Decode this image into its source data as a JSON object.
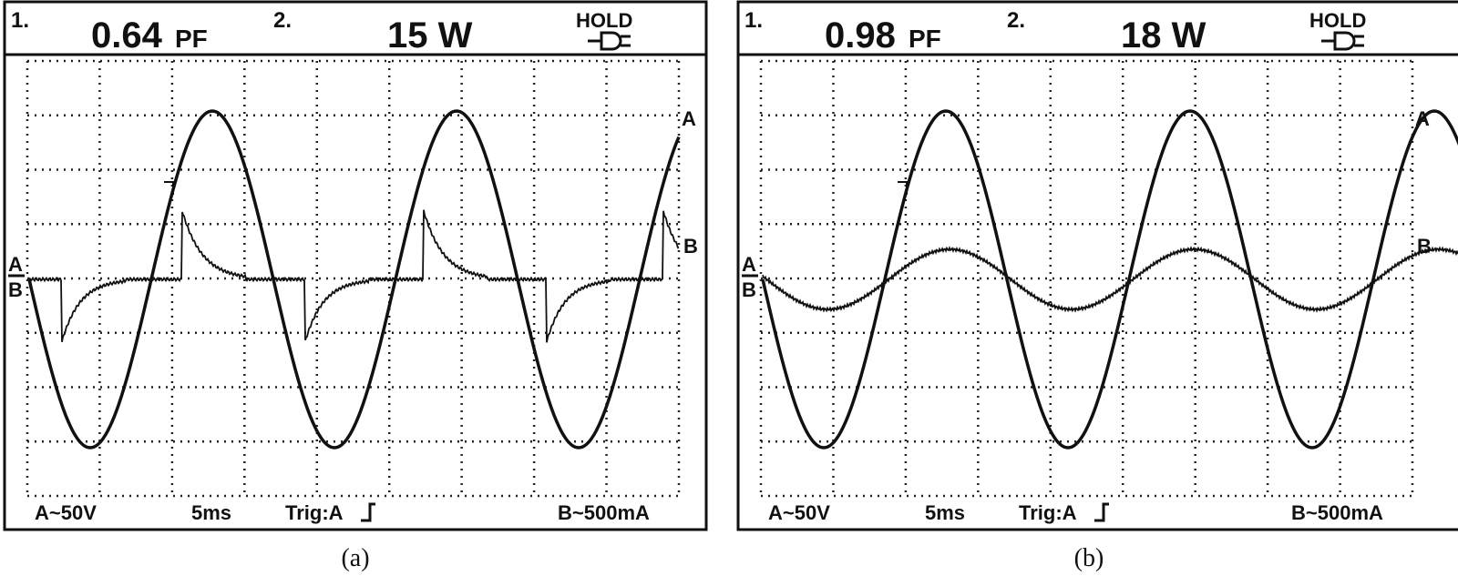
{
  "panels": [
    {
      "header": {
        "ch1": "1.",
        "pf_value": "0.64",
        "pf_unit": "PF",
        "ch2": "2.",
        "power": "15 W",
        "hold": "HOLD"
      },
      "trace_labels": {
        "a": "A",
        "b": "B"
      },
      "footer": {
        "a_scale": "A~50V",
        "time": "5ms",
        "trigger": "Trig:A",
        "b_scale": "B~500mA"
      },
      "caption": "(a)"
    },
    {
      "header": {
        "ch1": "1.",
        "pf_value": "0.98",
        "pf_unit": "PF",
        "ch2": "2.",
        "power": "18 W",
        "hold": "HOLD"
      },
      "trace_labels": {
        "a": "A",
        "b": "B"
      },
      "footer": {
        "a_scale": "A~50V",
        "time": "5ms",
        "trigger": "Trig:A",
        "b_scale": "B~500mA"
      },
      "caption": "(b)"
    }
  ]
}
